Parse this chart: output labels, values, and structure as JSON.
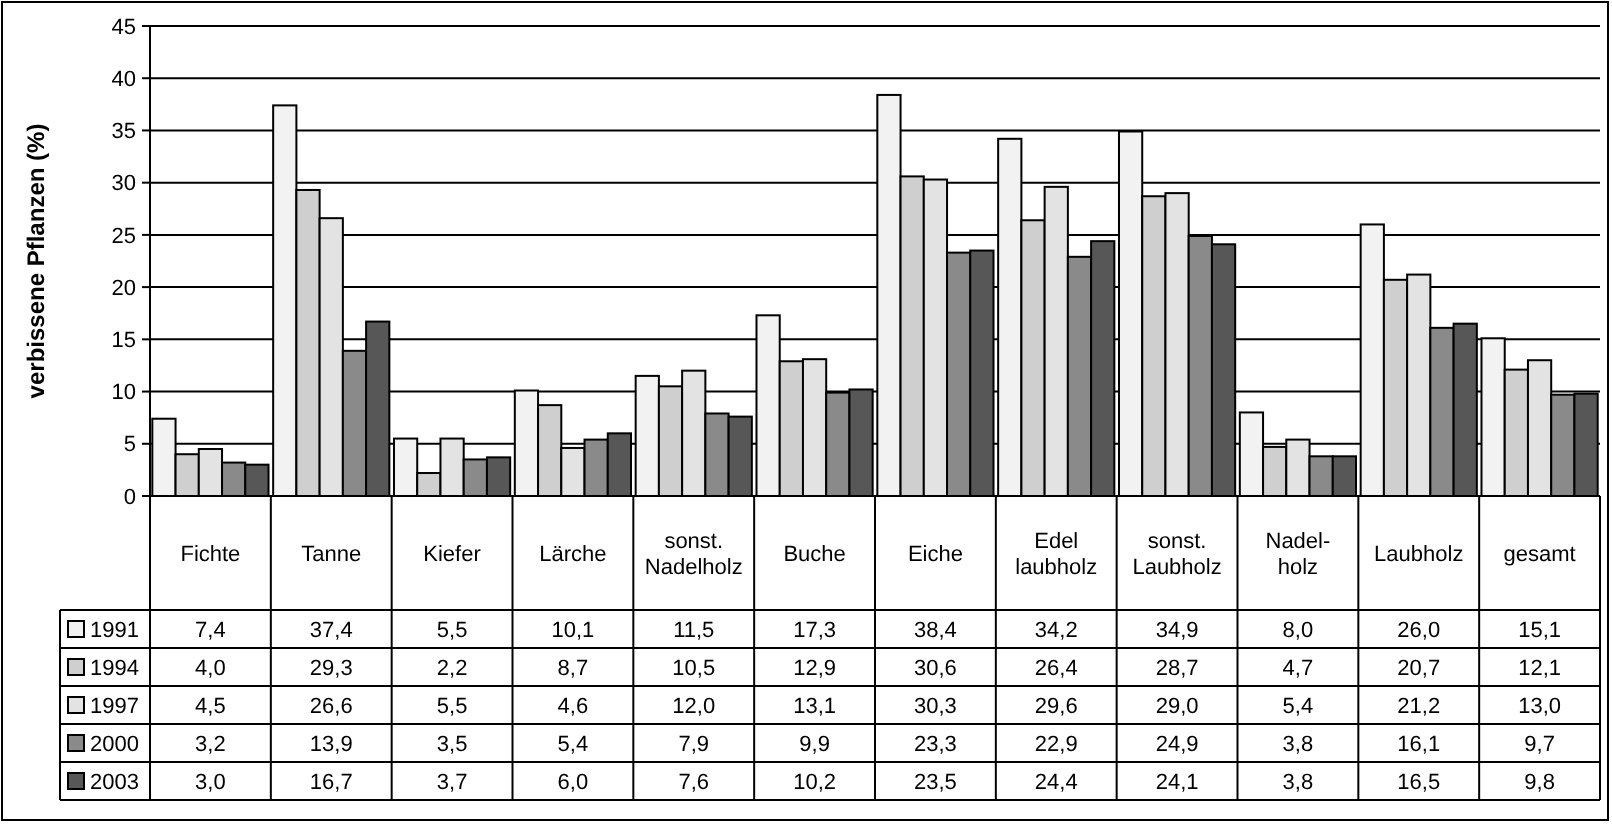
{
  "chart_data": {
    "type": "bar",
    "ylabel": "verbissene Pflanzen (%)",
    "categories": [
      "Fichte",
      "Tanne",
      "Kiefer",
      "Lärche",
      "sonst. Nadelholz",
      "Buche",
      "Eiche",
      "Edel laubholz",
      "sonst. Laubholz",
      "Nadel-holz",
      "Laubholz",
      "gesamt"
    ],
    "series": [
      {
        "name": "1991",
        "color": "#f2f2f2",
        "values": [
          7.4,
          37.4,
          5.5,
          10.1,
          11.5,
          17.3,
          38.4,
          34.2,
          34.9,
          8.0,
          26.0,
          15.1
        ],
        "value_labels": [
          "7,4",
          "37,4",
          "5,5",
          "10,1",
          "11,5",
          "17,3",
          "38,4",
          "34,2",
          "34,9",
          "8,0",
          "26,0",
          "15,1"
        ]
      },
      {
        "name": "1994",
        "color": "#cfcfcf",
        "values": [
          4.0,
          29.3,
          2.2,
          8.7,
          10.5,
          12.9,
          30.6,
          26.4,
          28.7,
          4.7,
          20.7,
          12.1
        ],
        "value_labels": [
          "4,0",
          "29,3",
          "2,2",
          "8,7",
          "10,5",
          "12,9",
          "30,6",
          "26,4",
          "28,7",
          "4,7",
          "20,7",
          "12,1"
        ]
      },
      {
        "name": "1997",
        "color": "#e3e3e3",
        "values": [
          4.5,
          26.6,
          5.5,
          4.6,
          12.0,
          13.1,
          30.3,
          29.6,
          29.0,
          5.4,
          21.2,
          13.0
        ],
        "value_labels": [
          "4,5",
          "26,6",
          "5,5",
          "4,6",
          "12,0",
          "13,1",
          "30,3",
          "29,6",
          "29,0",
          "5,4",
          "21,2",
          "13,0"
        ]
      },
      {
        "name": "2000",
        "color": "#8a8a8a",
        "values": [
          3.2,
          13.9,
          3.5,
          5.4,
          7.9,
          9.9,
          23.3,
          22.9,
          24.9,
          3.8,
          16.1,
          9.7
        ],
        "value_labels": [
          "3,2",
          "13,9",
          "3,5",
          "5,4",
          "7,9",
          "9,9",
          "23,3",
          "22,9",
          "24,9",
          "3,8",
          "16,1",
          "9,7"
        ]
      },
      {
        "name": "2003",
        "color": "#575757",
        "values": [
          3.0,
          16.7,
          3.7,
          6.0,
          7.6,
          10.2,
          23.5,
          24.4,
          24.1,
          3.8,
          16.5,
          9.8
        ],
        "value_labels": [
          "3,0",
          "16,7",
          "3,7",
          "6,0",
          "7,6",
          "10,2",
          "23,5",
          "24,4",
          "24,1",
          "3,8",
          "16,5",
          "9,8"
        ]
      }
    ],
    "ylim": [
      0,
      45
    ],
    "yticks": [
      0,
      5,
      10,
      15,
      20,
      25,
      30,
      35,
      40,
      45
    ],
    "grid": "y",
    "legend": "bottom"
  }
}
